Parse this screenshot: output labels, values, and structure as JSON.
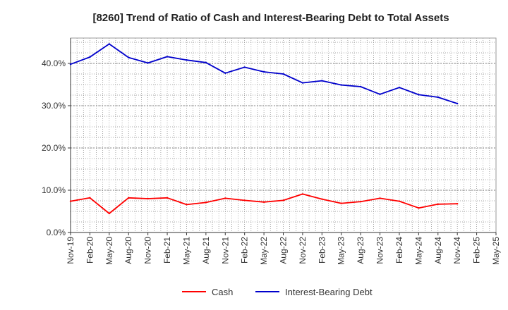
{
  "chart_data": {
    "type": "line",
    "title": "[8260]  Trend of Ratio of Cash and Interest-Bearing Debt to Total Assets",
    "xlabel": "",
    "ylabel": "",
    "categories": [
      "Nov-19",
      "Feb-20",
      "May-20",
      "Aug-20",
      "Nov-20",
      "Feb-21",
      "May-21",
      "Aug-21",
      "Nov-21",
      "Feb-22",
      "May-22",
      "Aug-22",
      "Nov-22",
      "Feb-23",
      "May-23",
      "Aug-23",
      "Nov-23",
      "Feb-24",
      "May-24",
      "Aug-24",
      "Nov-24",
      "Feb-25",
      "May-25"
    ],
    "ylim": [
      0,
      46
    ],
    "yticks": [
      0,
      10,
      20,
      30,
      40
    ],
    "ytick_labels": [
      "0.0%",
      "10.0%",
      "20.0%",
      "30.0%",
      "40.0%"
    ],
    "grid": true,
    "legend_position": "bottom",
    "series": [
      {
        "name": "Cash",
        "color": "#ff0000",
        "values": [
          7.4,
          8.2,
          4.5,
          8.2,
          8.0,
          8.2,
          6.6,
          7.1,
          8.1,
          7.6,
          7.2,
          7.6,
          9.1,
          7.9,
          6.9,
          7.3,
          8.1,
          7.4,
          5.8,
          6.7,
          6.8,
          null,
          null
        ]
      },
      {
        "name": "Interest-Bearing Debt",
        "color": "#0000cc",
        "values": [
          39.8,
          41.5,
          44.6,
          41.4,
          40.1,
          41.6,
          40.8,
          40.2,
          37.7,
          39.1,
          38.0,
          37.5,
          35.4,
          35.9,
          34.9,
          34.5,
          32.7,
          34.3,
          32.6,
          32.0,
          30.5,
          null,
          null
        ]
      }
    ]
  }
}
